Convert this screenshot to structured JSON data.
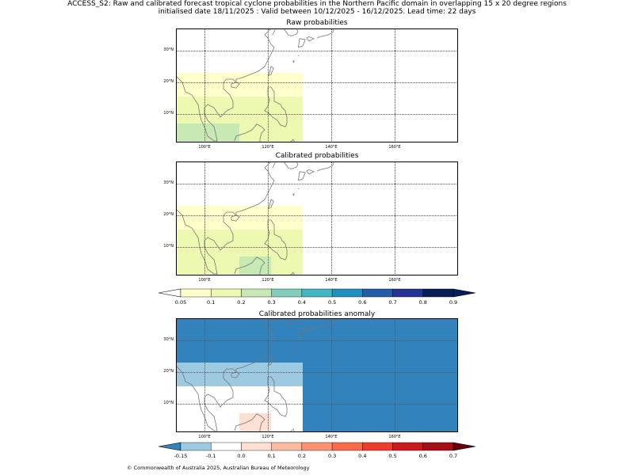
{
  "figure": {
    "title_line1": "ACCESS_S2: Raw and calibrated forecast tropical cyclone probabilities in the Northern Pacific domain in overlapping 15 x 20 degree regions",
    "title_line2": "initialised date 18/11/2025 :  Valid between 10/12/2025 - 16/12/2025. Lead time: 22 days",
    "footer": "© Commonwealth of Australia 2025, Australian Bureau of Meteorology"
  },
  "axes": {
    "lon_range": [
      91,
      180
    ],
    "lat_range": [
      1,
      37
    ],
    "lon_ticks": [
      100,
      120,
      140,
      160
    ],
    "lon_tick_labels": [
      "100°E",
      "120°E",
      "140°E",
      "160°E"
    ],
    "lat_ticks": [
      10,
      20,
      30
    ],
    "lat_tick_labels": [
      "10°N",
      "20°N",
      "30°N"
    ]
  },
  "panels": [
    {
      "title": "Raw probabilities",
      "background": "#ffffff",
      "cells": [
        {
          "lon": [
            91,
            131
          ],
          "lat": [
            1,
            23
          ],
          "color": "#ffffcc"
        },
        {
          "lon": [
            91,
            131
          ],
          "lat": [
            1,
            15.5
          ],
          "color": "#edf8b1"
        },
        {
          "lon": [
            91,
            111
          ],
          "lat": [
            1,
            7
          ],
          "color": "#c7e9b4"
        }
      ]
    },
    {
      "title": "Calibrated probabilities",
      "background": "#ffffff",
      "cells": [
        {
          "lon": [
            91,
            131
          ],
          "lat": [
            1,
            23
          ],
          "color": "#ffffcc"
        },
        {
          "lon": [
            91,
            131
          ],
          "lat": [
            1,
            15.5
          ],
          "color": "#edf8b1"
        },
        {
          "lon": [
            111,
            121
          ],
          "lat": [
            1,
            7
          ],
          "color": "#c7e9b4"
        }
      ]
    },
    {
      "title": "Calibrated probabilities anomaly",
      "background": "#3182bd",
      "cells": [
        {
          "lon": [
            91,
            131
          ],
          "lat": [
            1,
            23
          ],
          "color": "#9ecae1"
        },
        {
          "lon": [
            91,
            131
          ],
          "lat": [
            1,
            15.5
          ],
          "color": "#ffffff"
        },
        {
          "lon": [
            111,
            121
          ],
          "lat": [
            1,
            7
          ],
          "color": "#fee0d2"
        }
      ]
    }
  ],
  "colorbars": [
    {
      "ticks": [
        "0.05",
        "0.1",
        "0.2",
        "0.3",
        "0.4",
        "0.5",
        "0.6",
        "0.7",
        "0.8",
        "0.9"
      ],
      "colors": [
        "#ffffcc",
        "#edf8b1",
        "#c7e9b4",
        "#7fcdbb",
        "#41b6c4",
        "#1d91c0",
        "#225ea8",
        "#253494",
        "#081d58"
      ],
      "under_color": "#ffffff",
      "over_color": "#081d58"
    },
    {
      "ticks": [
        "-0.15",
        "-0.1",
        "0.0",
        "0.1",
        "0.2",
        "0.3",
        "0.4",
        "0.5",
        "0.6",
        "0.7"
      ],
      "colors": [
        "#9ecae1",
        "#ffffff",
        "#fee0d2",
        "#fcbba1",
        "#fc9272",
        "#fb6a4a",
        "#ef3b2c",
        "#cb181d",
        "#a50f15"
      ],
      "under_color": "#3182bd",
      "over_color": "#67000d"
    }
  ]
}
